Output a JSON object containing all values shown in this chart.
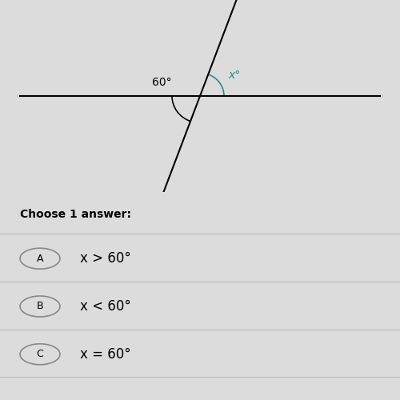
{
  "bg_color": "#dcdcdc",
  "diagram_bg": "#dcdcdc",
  "line_color": "#000000",
  "teal_color": "#2b8a8a",
  "angle_label_60": "60°",
  "angle_label_x": "x°",
  "choose_text": "Choose 1 answer:",
  "options": [
    {
      "label": "A",
      "text": "x > 60°"
    },
    {
      "label": "B",
      "text": "x < 60°"
    },
    {
      "label": "C",
      "text": "x = 60°"
    }
  ],
  "option_text_color": "#000000",
  "circle_color": "#888888",
  "divider_color": "#bbbbbb",
  "choose_fontsize": 10,
  "option_fontsize": 12
}
